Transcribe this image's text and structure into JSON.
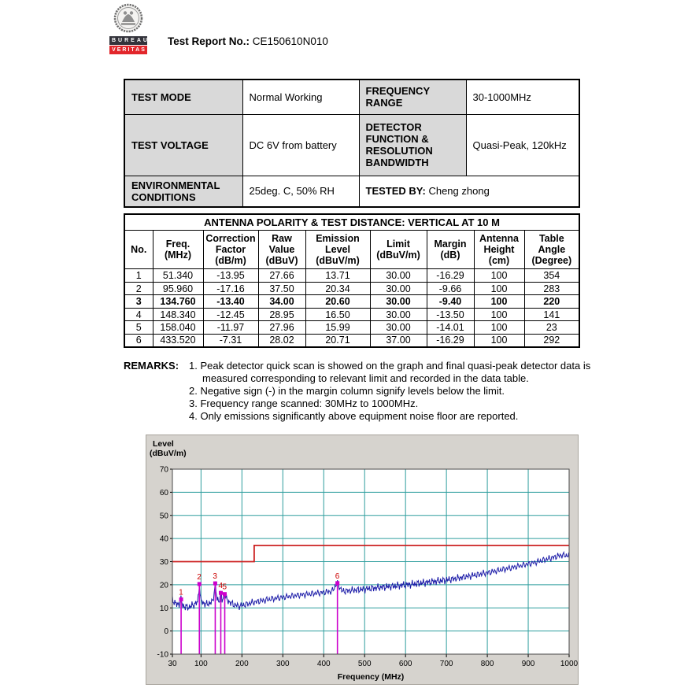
{
  "header": {
    "report_label": "Test Report No.:",
    "report_number": "CE150610N010",
    "logo": {
      "top_text": "BUREAU",
      "bottom_text": "VERITAS"
    }
  },
  "info_table": {
    "test_mode_label": "TEST MODE",
    "test_mode_value": "Normal Working",
    "freq_range_label": "FREQUENCY RANGE",
    "freq_range_value": "30-1000MHz",
    "test_voltage_label": "TEST VOLTAGE",
    "test_voltage_value": "DC 6V from battery",
    "detector_label": "DETECTOR FUNCTION & RESOLUTION BANDWIDTH",
    "detector_value": "Quasi-Peak, 120kHz",
    "env_label": "ENVIRONMENTAL CONDITIONS",
    "env_value": "25deg. C, 50% RH",
    "tested_by_label": "TESTED BY:",
    "tested_by_value": "Cheng zhong"
  },
  "results_table": {
    "title": "ANTENNA POLARITY & TEST DISTANCE: VERTICAL AT 10 M",
    "headers": [
      "No.",
      "Freq.\n(MHz)",
      "Correction\nFactor\n(dB/m)",
      "Raw\nValue\n(dBuV)",
      "Emission\nLevel\n(dBuV/m)",
      "Limit\n(dBuV/m)",
      "Margin\n(dB)",
      "Antenna\nHeight\n(cm)",
      "Table\nAngle\n(Degree)"
    ],
    "bold_row_index": 2,
    "rows": [
      [
        "1",
        "51.340",
        "-13.95",
        "27.66",
        "13.71",
        "30.00",
        "-16.29",
        "100",
        "354"
      ],
      [
        "2",
        "95.960",
        "-17.16",
        "37.50",
        "20.34",
        "30.00",
        "-9.66",
        "100",
        "283"
      ],
      [
        "3",
        "134.760",
        "-13.40",
        "34.00",
        "20.60",
        "30.00",
        "-9.40",
        "100",
        "220"
      ],
      [
        "4",
        "148.340",
        "-12.45",
        "28.95",
        "16.50",
        "30.00",
        "-13.50",
        "100",
        "141"
      ],
      [
        "5",
        "158.040",
        "-11.97",
        "27.96",
        "15.99",
        "30.00",
        "-14.01",
        "100",
        "23"
      ],
      [
        "6",
        "433.520",
        "-7.31",
        "28.02",
        "20.71",
        "37.00",
        "-16.29",
        "100",
        "292"
      ]
    ]
  },
  "remarks": {
    "label": "REMARKS:",
    "items": [
      "1. Peak detector quick scan is showed on the graph and final quasi-peak detector data is measured corresponding to relevant limit and recorded in the data table.",
      "2. Negative sign (-) in the margin column signify levels below the limit.",
      "3. Frequency range scanned: 30MHz to 1000MHz.",
      "4. Only emissions significantly above equipment noise floor are reported."
    ]
  },
  "chart_data": {
    "type": "line",
    "xlabel": "Frequency (MHz)",
    "ylabel": "Level\n(dBuV/m)",
    "xlim": [
      30,
      1000
    ],
    "ylim": [
      -10,
      70
    ],
    "x_scale": "linear",
    "x_ticks": [
      30,
      100,
      200,
      300,
      400,
      500,
      600,
      700,
      800,
      900,
      1000
    ],
    "y_ticks": [
      70,
      60,
      50,
      40,
      30,
      20,
      10,
      0,
      -10
    ],
    "grid": true,
    "grid_color": "#2e9e9e",
    "marker_color": "#cc00cc",
    "series": [
      {
        "name": "quasi-peak-limit",
        "color": "#cc2020",
        "points": [
          [
            30,
            30
          ],
          [
            230,
            30
          ],
          [
            230,
            37
          ],
          [
            1000,
            37
          ]
        ]
      },
      {
        "name": "peak-scan-trace",
        "color": "#1c1ca8",
        "anchors": [
          [
            30,
            13.5
          ],
          [
            36,
            12.3
          ],
          [
            42,
            11.2
          ],
          [
            47,
            12.0
          ],
          [
            51.34,
            13.7
          ],
          [
            55,
            11.0
          ],
          [
            62,
            10.4
          ],
          [
            70,
            10.2
          ],
          [
            78,
            11.0
          ],
          [
            86,
            11.8
          ],
          [
            92,
            12.5
          ],
          [
            95.96,
            20.3
          ],
          [
            99,
            13.5
          ],
          [
            106,
            12.0
          ],
          [
            114,
            11.6
          ],
          [
            122,
            12.2
          ],
          [
            129,
            12.8
          ],
          [
            134.76,
            20.6
          ],
          [
            139,
            13.5
          ],
          [
            144,
            13.0
          ],
          [
            148.34,
            16.5
          ],
          [
            152,
            12.8
          ],
          [
            158.04,
            16.0
          ],
          [
            163,
            13.5
          ],
          [
            172,
            12.2
          ],
          [
            182,
            11.2
          ],
          [
            195,
            10.8
          ],
          [
            210,
            11.5
          ],
          [
            225,
            12.3
          ],
          [
            245,
            13.0
          ],
          [
            270,
            13.8
          ],
          [
            300,
            14.6
          ],
          [
            330,
            15.3
          ],
          [
            360,
            15.9
          ],
          [
            395,
            16.6
          ],
          [
            420,
            17.2
          ],
          [
            433.52,
            20.7
          ],
          [
            445,
            17.2
          ],
          [
            470,
            17.6
          ],
          [
            500,
            18.1
          ],
          [
            530,
            18.7
          ],
          [
            560,
            19.2
          ],
          [
            590,
            19.8
          ],
          [
            620,
            20.3
          ],
          [
            650,
            21.0
          ],
          [
            680,
            21.6
          ],
          [
            710,
            22.3
          ],
          [
            740,
            23.2
          ],
          [
            770,
            24.2
          ],
          [
            800,
            25.2
          ],
          [
            830,
            26.3
          ],
          [
            860,
            27.4
          ],
          [
            890,
            28.6
          ],
          [
            915,
            29.6
          ],
          [
            940,
            30.8
          ],
          [
            960,
            31.8
          ],
          [
            980,
            32.8
          ],
          [
            1000,
            32.6
          ]
        ]
      }
    ],
    "markers": [
      {
        "n": "1",
        "freq": 51.34,
        "level": 13.71
      },
      {
        "n": "2",
        "freq": 95.96,
        "level": 20.34
      },
      {
        "n": "3",
        "freq": 134.76,
        "level": 20.6
      },
      {
        "n": "4",
        "freq": 148.34,
        "level": 16.5
      },
      {
        "n": "5",
        "freq": 158.04,
        "level": 15.99
      },
      {
        "n": "6",
        "freq": 433.52,
        "level": 20.71
      }
    ]
  }
}
